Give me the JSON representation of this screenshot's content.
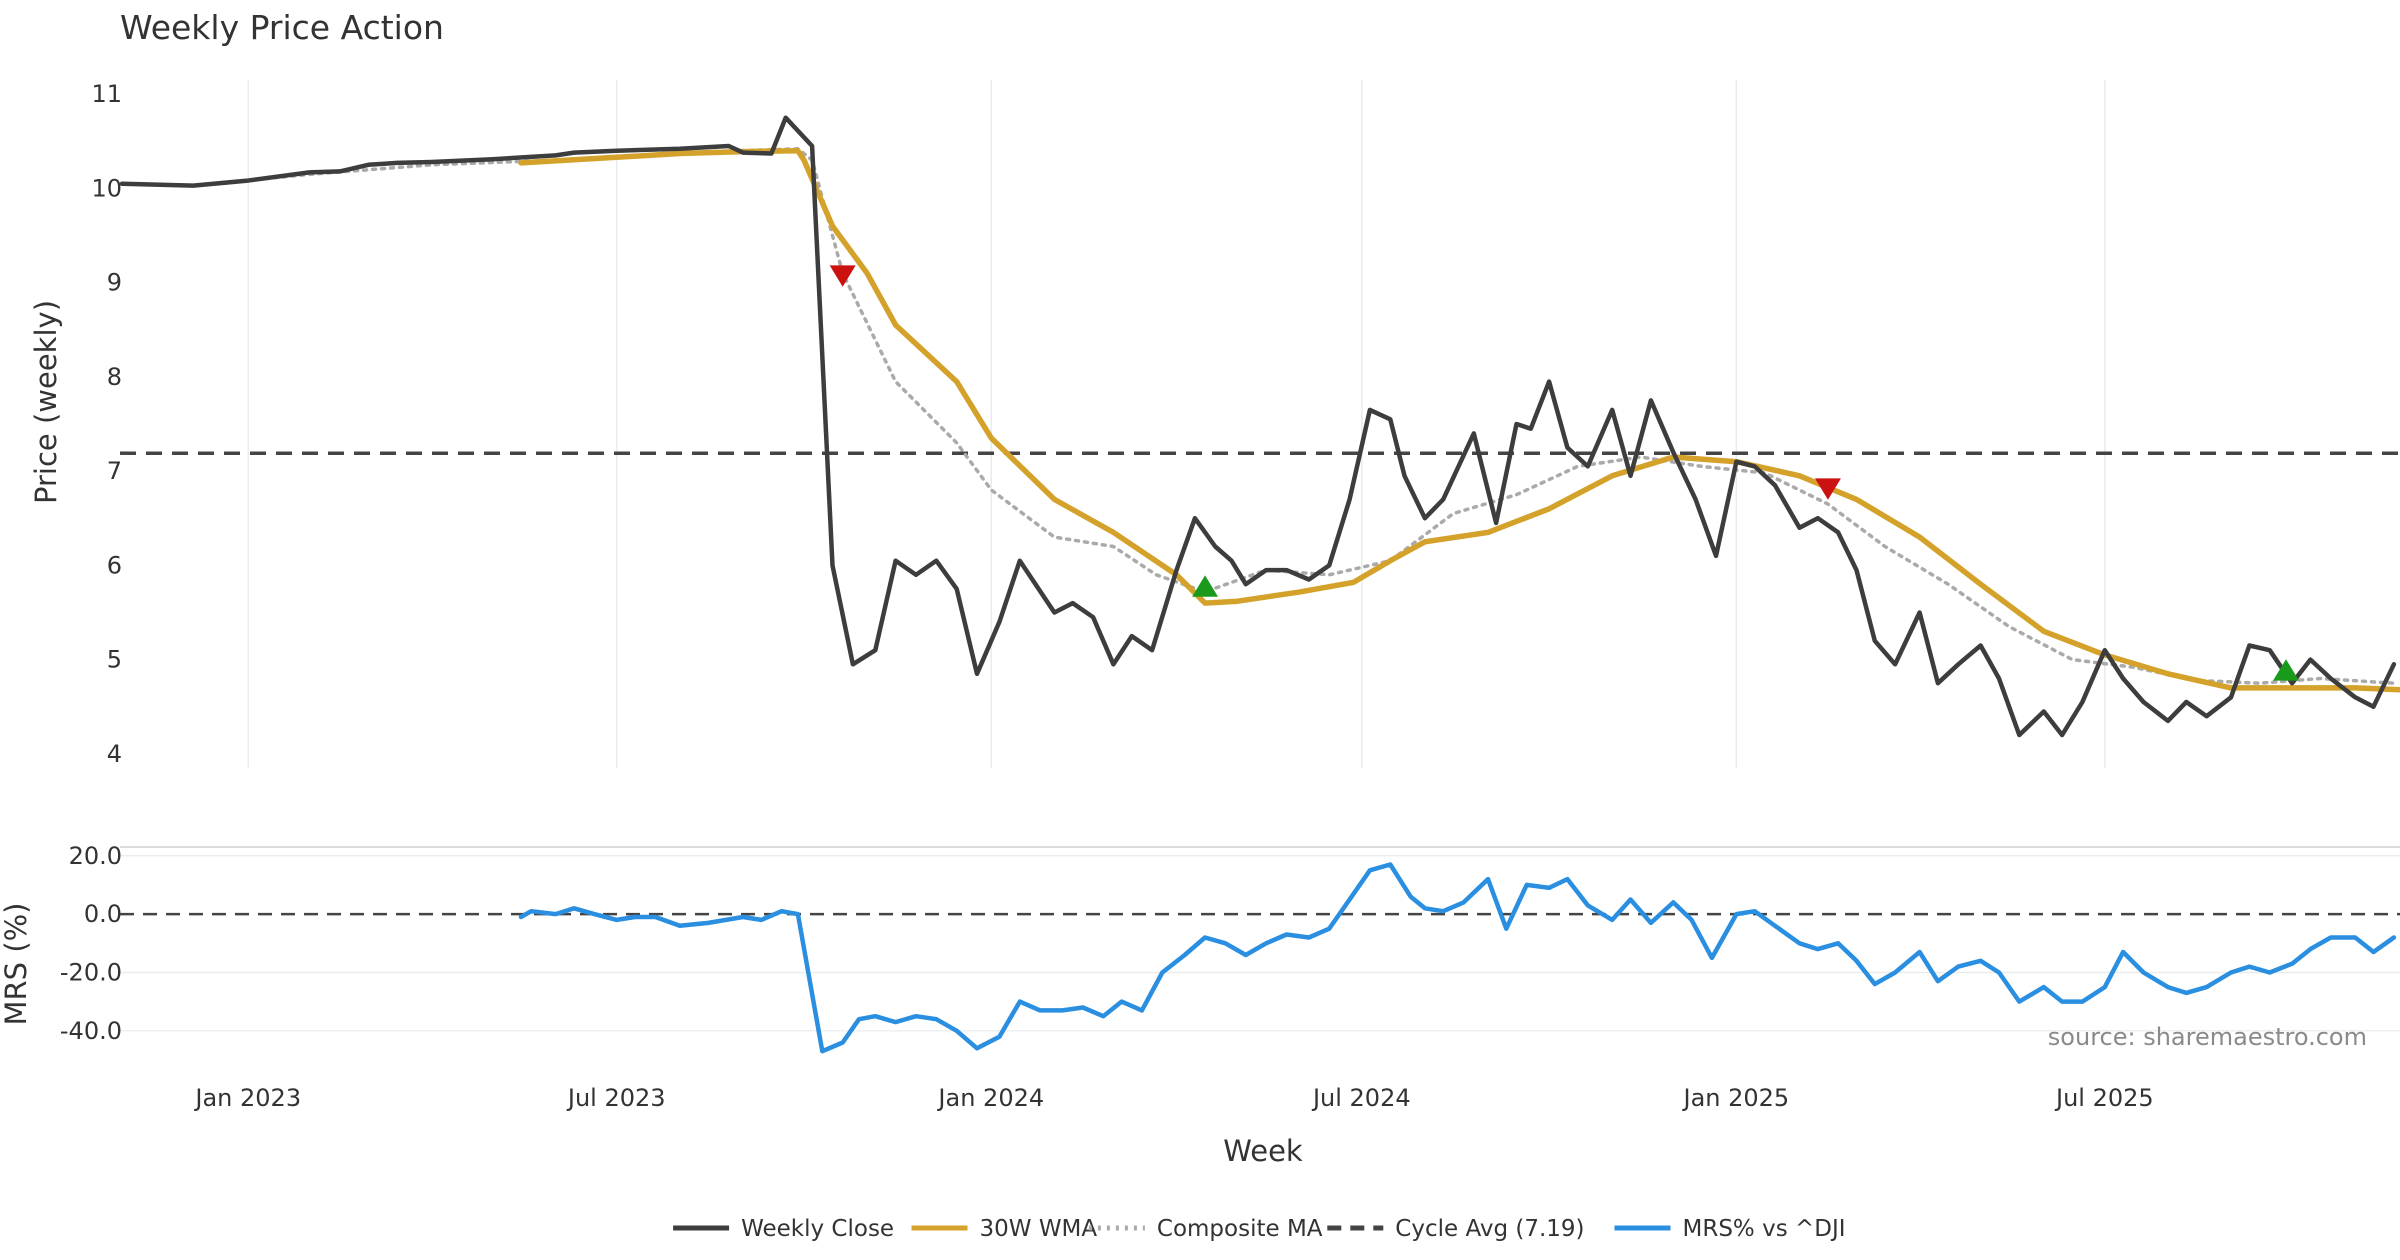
{
  "title": "Weekly Price Action",
  "source_text": "source: sharemaestro.com",
  "chart_data": [
    {
      "type": "line",
      "panel": "price",
      "ylabel": "Price (weekly)",
      "ylim": [
        3.85,
        11.15
      ],
      "yticks": [
        4,
        5,
        6,
        7,
        8,
        9,
        10,
        11
      ],
      "xlim": [
        "2022-10-30",
        "2025-11-23"
      ],
      "grid": "vertical at month ticks",
      "reference_line": {
        "name": "Cycle Avg (7.19)",
        "value": 7.19,
        "style": "dashed",
        "color": "#444444"
      },
      "series": [
        {
          "name": "Weekly Close",
          "color": "#3d3d3d",
          "style": "solid",
          "x": [
            "2022-10-31",
            "2022-12-05",
            "2022-12-31",
            "2023-01-31",
            "2023-02-15",
            "2023-03-01",
            "2023-03-15",
            "2023-04-01",
            "2023-05-01",
            "2023-06-01",
            "2023-06-10",
            "2023-07-01",
            "2023-08-01",
            "2023-08-25",
            "2023-09-01",
            "2023-09-15",
            "2023-09-22",
            "2023-10-05",
            "2023-10-15",
            "2023-10-25",
            "2023-11-05",
            "2023-11-15",
            "2023-11-25",
            "2023-12-05",
            "2023-12-15",
            "2023-12-25",
            "2024-01-05",
            "2024-01-15",
            "2024-02-01",
            "2024-02-10",
            "2024-02-20",
            "2024-03-01",
            "2024-03-10",
            "2024-03-20",
            "2024-04-01",
            "2024-04-10",
            "2024-04-20",
            "2024-04-28",
            "2024-05-05",
            "2024-05-15",
            "2024-05-25",
            "2024-06-05",
            "2024-06-15",
            "2024-06-25",
            "2024-07-05",
            "2024-07-15",
            "2024-07-22",
            "2024-08-01",
            "2024-08-10",
            "2024-08-25",
            "2024-09-05",
            "2024-09-15",
            "2024-09-22",
            "2024-10-01",
            "2024-10-10",
            "2024-10-20",
            "2024-11-01",
            "2024-11-10",
            "2024-11-20",
            "2024-12-01",
            "2024-12-12",
            "2024-12-22",
            "2025-01-01",
            "2025-01-10",
            "2025-01-20",
            "2025-02-01",
            "2025-02-10",
            "2025-02-20",
            "2025-03-01",
            "2025-03-10",
            "2025-03-20",
            "2025-04-01",
            "2025-04-10",
            "2025-04-20",
            "2025-05-01",
            "2025-05-10",
            "2025-05-20",
            "2025-06-01",
            "2025-06-10",
            "2025-06-20",
            "2025-07-01",
            "2025-07-10",
            "2025-07-20",
            "2025-08-01",
            "2025-08-10",
            "2025-08-20",
            "2025-09-01",
            "2025-09-10",
            "2025-09-20",
            "2025-10-01",
            "2025-10-10",
            "2025-10-20",
            "2025-11-01",
            "2025-11-10",
            "2025-11-20"
          ],
          "y": [
            10.05,
            10.03,
            10.08,
            10.17,
            10.18,
            10.25,
            10.27,
            10.28,
            10.31,
            10.35,
            10.38,
            10.4,
            10.42,
            10.45,
            10.38,
            10.37,
            10.75,
            10.45,
            6.0,
            4.95,
            5.1,
            6.05,
            5.9,
            6.05,
            5.75,
            4.85,
            5.4,
            6.05,
            5.5,
            5.6,
            5.45,
            4.95,
            5.25,
            5.1,
            5.95,
            6.5,
            6.2,
            6.05,
            5.8,
            5.95,
            5.95,
            5.85,
            6.0,
            6.7,
            7.65,
            7.55,
            6.95,
            6.5,
            6.7,
            7.4,
            6.45,
            7.5,
            7.45,
            7.95,
            7.25,
            7.05,
            7.65,
            6.95,
            7.75,
            7.2,
            6.7,
            6.1,
            7.1,
            7.05,
            6.85,
            6.4,
            6.5,
            6.35,
            5.95,
            5.2,
            4.95,
            5.5,
            4.75,
            4.95,
            5.15,
            4.8,
            4.2,
            4.45,
            4.2,
            4.55,
            5.1,
            4.8,
            4.55,
            4.35,
            4.55,
            4.4,
            4.6,
            5.15,
            5.1,
            4.75,
            5.0,
            4.8,
            4.6,
            4.5,
            4.95
          ]
        },
        {
          "name": "30W WMA",
          "color": "#d4a22a",
          "style": "solid",
          "x": [
            "2023-05-15",
            "2023-07-01",
            "2023-08-01",
            "2023-09-01",
            "2023-09-28",
            "2023-10-01",
            "2023-10-15",
            "2023-11-01",
            "2023-11-15",
            "2023-12-15",
            "2024-01-01",
            "2024-02-01",
            "2024-03-01",
            "2024-04-01",
            "2024-04-15",
            "2024-05-01",
            "2024-06-01",
            "2024-06-27",
            "2024-07-15",
            "2024-08-01",
            "2024-09-01",
            "2024-10-01",
            "2024-11-01",
            "2024-12-01",
            "2025-01-01",
            "2025-02-01",
            "2025-03-01",
            "2025-04-01",
            "2025-05-01",
            "2025-06-01",
            "2025-07-01",
            "2025-08-01",
            "2025-09-01",
            "2025-10-01",
            "2025-11-01",
            "2025-11-23"
          ],
          "y": [
            10.27,
            10.33,
            10.37,
            10.39,
            10.4,
            10.3,
            9.6,
            9.1,
            8.55,
            7.95,
            7.35,
            6.7,
            6.35,
            5.9,
            5.6,
            5.62,
            5.72,
            5.82,
            6.05,
            6.25,
            6.35,
            6.6,
            6.95,
            7.15,
            7.1,
            6.95,
            6.7,
            6.3,
            5.8,
            5.3,
            5.05,
            4.85,
            4.7,
            4.7,
            4.7,
            4.68
          ]
        },
        {
          "name": "Composite MA",
          "color": "#aaaaaa",
          "style": "dotted",
          "x": [
            "2022-12-05",
            "2023-02-01",
            "2023-04-01",
            "2023-06-01",
            "2023-08-01",
            "2023-09-28",
            "2023-10-05",
            "2023-10-20",
            "2023-11-15",
            "2023-12-15",
            "2024-01-01",
            "2024-02-01",
            "2024-03-01",
            "2024-03-22",
            "2024-04-15",
            "2024-05-15",
            "2024-06-15",
            "2024-07-15",
            "2024-08-15",
            "2024-09-15",
            "2024-10-15",
            "2024-11-15",
            "2024-12-15",
            "2025-01-15",
            "2025-02-15",
            "2025-03-15",
            "2025-04-15",
            "2025-05-15",
            "2025-06-15",
            "2025-07-15",
            "2025-08-15",
            "2025-09-15",
            "2025-10-15",
            "2025-11-20"
          ],
          "y": [
            10.03,
            10.15,
            10.25,
            10.3,
            10.38,
            10.42,
            10.3,
            9.1,
            7.95,
            7.3,
            6.8,
            6.3,
            6.2,
            5.9,
            5.72,
            5.95,
            5.9,
            6.05,
            6.55,
            6.75,
            7.05,
            7.15,
            7.05,
            6.98,
            6.65,
            6.2,
            5.8,
            5.35,
            5.0,
            4.92,
            4.78,
            4.75,
            4.8,
            4.75
          ]
        }
      ],
      "markers": [
        {
          "type": "sell",
          "shape": "down-triangle",
          "color": "#cc1111",
          "x": "2023-10-20",
          "y": 9.08
        },
        {
          "type": "buy",
          "shape": "up-triangle",
          "color": "#1a9a1a",
          "x": "2024-04-15",
          "y": 5.77
        },
        {
          "type": "sell",
          "shape": "down-triangle",
          "color": "#cc1111",
          "x": "2025-02-15",
          "y": 6.82
        },
        {
          "type": "buy",
          "shape": "up-triangle",
          "color": "#1a9a1a",
          "x": "2025-09-28",
          "y": 4.88
        }
      ]
    },
    {
      "type": "line",
      "panel": "mrs",
      "ylabel": "MRS (%)",
      "xlabel": "Week",
      "ylim": [
        -50,
        23
      ],
      "yticks": [
        "20.0",
        "0.0",
        "-20.0",
        "-40.0"
      ],
      "ytick_values": [
        20,
        0,
        -20,
        -40
      ],
      "xticks": [
        {
          "label": "Jan 2023",
          "x": "2023-01-01"
        },
        {
          "label": "Jul 2023",
          "x": "2023-07-01"
        },
        {
          "label": "Jan 2024",
          "x": "2024-01-01"
        },
        {
          "label": "Jul 2024",
          "x": "2024-07-01"
        },
        {
          "label": "Jan 2025",
          "x": "2025-01-01"
        },
        {
          "label": "Jul 2025",
          "x": "2025-07-01"
        }
      ],
      "reference_line": {
        "value": 0,
        "style": "dashed"
      },
      "series": [
        {
          "name": "MRS% vs ^DJI",
          "color": "#2a8fe0",
          "style": "solid",
          "x": [
            "2023-05-15",
            "2023-05-20",
            "2023-06-01",
            "2023-06-10",
            "2023-06-20",
            "2023-07-01",
            "2023-07-10",
            "2023-07-20",
            "2023-08-01",
            "2023-08-15",
            "2023-09-01",
            "2023-09-10",
            "2023-09-20",
            "2023-09-28",
            "2023-10-10",
            "2023-10-20",
            "2023-10-28",
            "2023-11-05",
            "2023-11-15",
            "2023-11-25",
            "2023-12-05",
            "2023-12-15",
            "2023-12-25",
            "2024-01-05",
            "2024-01-15",
            "2024-01-25",
            "2024-02-05",
            "2024-02-15",
            "2024-02-25",
            "2024-03-05",
            "2024-03-15",
            "2024-03-25",
            "2024-04-05",
            "2024-04-15",
            "2024-04-25",
            "2024-05-05",
            "2024-05-15",
            "2024-05-25",
            "2024-06-05",
            "2024-06-15",
            "2024-06-25",
            "2024-07-05",
            "2024-07-15",
            "2024-07-25",
            "2024-08-01",
            "2024-08-10",
            "2024-08-20",
            "2024-09-01",
            "2024-09-10",
            "2024-09-20",
            "2024-10-01",
            "2024-10-10",
            "2024-10-20",
            "2024-11-01",
            "2024-11-10",
            "2024-11-20",
            "2024-12-01",
            "2024-12-10",
            "2024-12-20",
            "2025-01-01",
            "2025-01-10",
            "2025-01-20",
            "2025-02-01",
            "2025-02-10",
            "2025-02-20",
            "2025-03-01",
            "2025-03-10",
            "2025-03-20",
            "2025-04-01",
            "2025-04-10",
            "2025-04-20",
            "2025-05-01",
            "2025-05-10",
            "2025-05-20",
            "2025-06-01",
            "2025-06-10",
            "2025-06-20",
            "2025-07-01",
            "2025-07-10",
            "2025-07-20",
            "2025-08-01",
            "2025-08-10",
            "2025-08-20",
            "2025-09-01",
            "2025-09-10",
            "2025-09-20",
            "2025-10-01",
            "2025-10-10",
            "2025-10-20",
            "2025-11-01",
            "2025-11-10",
            "2025-11-20"
          ],
          "y": [
            -1,
            1,
            0,
            2,
            0,
            -2,
            -1,
            -1,
            -4,
            -3,
            -1,
            -2,
            1,
            0,
            -47,
            -44,
            -36,
            -35,
            -37,
            -35,
            -36,
            -40,
            -46,
            -42,
            -30,
            -33,
            -33,
            -32,
            -35,
            -30,
            -33,
            -20,
            -14,
            -8,
            -10,
            -14,
            -10,
            -7,
            -8,
            -5,
            5,
            15,
            17,
            6,
            2,
            1,
            4,
            12,
            -5,
            10,
            9,
            12,
            3,
            -2,
            5,
            -3,
            4,
            -2,
            -15,
            0,
            1,
            -4,
            -10,
            -12,
            -10,
            -16,
            -24,
            -20,
            -13,
            -23,
            -18,
            -16,
            -20,
            -30,
            -25,
            -30,
            -30,
            -25,
            -13,
            -20,
            -25,
            -27,
            -25,
            -20,
            -18,
            -20,
            -17,
            -12,
            -8,
            -8,
            -13,
            -8
          ]
        }
      ]
    }
  ],
  "legend": [
    {
      "label": "Weekly Close",
      "color": "#3d3d3d",
      "style": "solid"
    },
    {
      "label": "30W WMA",
      "color": "#d4a22a",
      "style": "solid"
    },
    {
      "label": "Composite MA",
      "color": "#aaaaaa",
      "style": "dotted"
    },
    {
      "label": "Cycle Avg (7.19)",
      "color": "#444444",
      "style": "dashed"
    },
    {
      "label": "MRS% vs ^DJI",
      "color": "#2a8fe0",
      "style": "solid"
    }
  ]
}
